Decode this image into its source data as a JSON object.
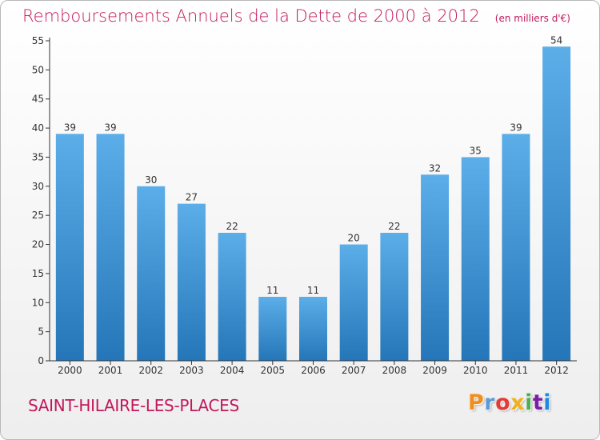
{
  "title": "Remboursements Annuels de la Dette de 2000 à 2012",
  "unit": "(en milliers d'€)",
  "commune": "SAINT-HILAIRE-LES-PLACES",
  "logo": {
    "letters": [
      "P",
      "r",
      "o",
      "x",
      "i",
      "t",
      "i"
    ],
    "colors": [
      "#f28e1c",
      "#5b9bd5",
      "#e53935",
      "#f2b01e",
      "#4caf50",
      "#7b1fa2",
      "#1e88e5"
    ]
  },
  "colors": {
    "title": "#c2185b",
    "bar_top": "#5caee9",
    "bar_bottom": "#2476b8",
    "axis": "#333333"
  },
  "chart_data": {
    "type": "bar",
    "categories": [
      "2000",
      "2001",
      "2002",
      "2003",
      "2004",
      "2005",
      "2006",
      "2007",
      "2008",
      "2009",
      "2010",
      "2011",
      "2012"
    ],
    "values": [
      39,
      39,
      30,
      27,
      22,
      11,
      11,
      20,
      22,
      32,
      35,
      39,
      54
    ],
    "ylim": [
      0,
      55
    ],
    "yticks": [
      0,
      5,
      10,
      15,
      20,
      25,
      30,
      35,
      40,
      45,
      50,
      55
    ],
    "xlabel": "",
    "ylabel": "",
    "grid": false,
    "data_labels": true
  }
}
